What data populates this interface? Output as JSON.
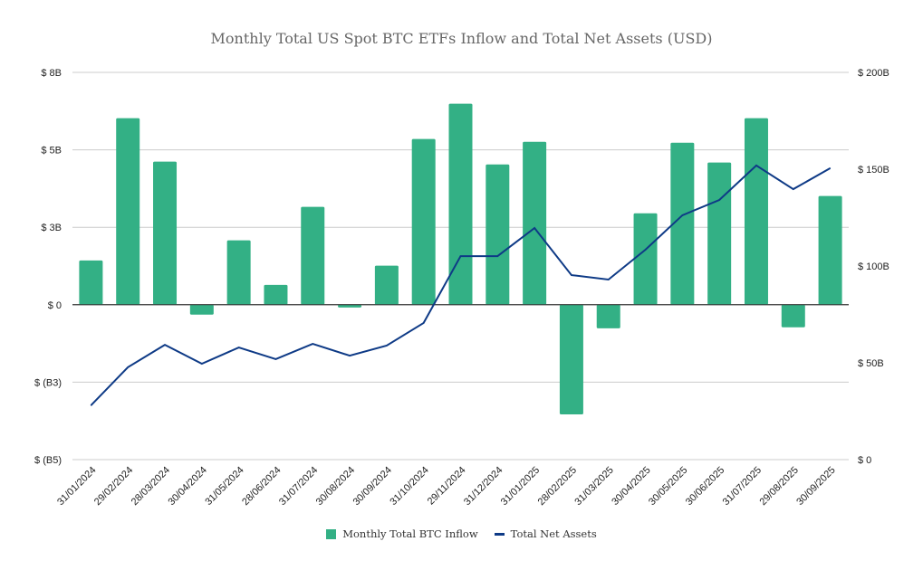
{
  "chart_data": {
    "type": "bar+line",
    "title": "Monthly Total US Spot BTC ETFs Inflow and Total Net Assets (USD)",
    "categories": [
      "31/01/2024",
      "29/02/2024",
      "28/03/2024",
      "30/04/2024",
      "31/05/2024",
      "28/06/2024",
      "31/07/2024",
      "30/08/2024",
      "30/09/2024",
      "31/10/2024",
      "29/11/2024",
      "31/12/2024",
      "31/01/2025",
      "28/02/2025",
      "31/03/2025",
      "30/04/2025",
      "30/05/2025",
      "30/06/2025",
      "31/07/2025",
      "29/08/2025",
      "30/09/2025"
    ],
    "series": [
      {
        "name": "Monthly Total BTC Inflow",
        "type": "bar",
        "axis": "left",
        "color": "#33b085",
        "values": [
          1.43,
          6.02,
          4.62,
          -0.32,
          2.08,
          0.64,
          3.16,
          -0.09,
          1.26,
          5.35,
          6.49,
          4.53,
          5.26,
          -3.54,
          -0.76,
          2.95,
          5.23,
          4.59,
          6.02,
          -0.73,
          3.51
        ]
      },
      {
        "name": "Total Net Assets",
        "type": "line",
        "axis": "right",
        "color": "#0e3a86",
        "values": [
          28,
          47.7,
          59.3,
          49.5,
          57.9,
          51.9,
          59.8,
          53.7,
          58.9,
          70.6,
          105.1,
          105.1,
          119.6,
          95.3,
          93,
          108.4,
          126.2,
          134.1,
          151.9,
          139.7,
          150.5
        ]
      }
    ],
    "left_axis": {
      "unit": "USD billions",
      "range": [
        -5,
        7.5
      ],
      "ticks": [
        7.5,
        5,
        2.5,
        0,
        -2.5,
        -5
      ],
      "tick_labels": [
        "$ 8B",
        "$ 5B",
        "$ 3B",
        "$ 0",
        "$ (B3)",
        "$ (B5)"
      ]
    },
    "right_axis": {
      "unit": "USD billions",
      "range": [
        0,
        200
      ],
      "ticks": [
        200,
        150,
        100,
        50,
        0
      ],
      "tick_labels": [
        "$ 200B",
        "$ 150B",
        "$ 100B",
        "$ 50B",
        "$ 0"
      ]
    },
    "grid": true,
    "legend": "bottom"
  }
}
